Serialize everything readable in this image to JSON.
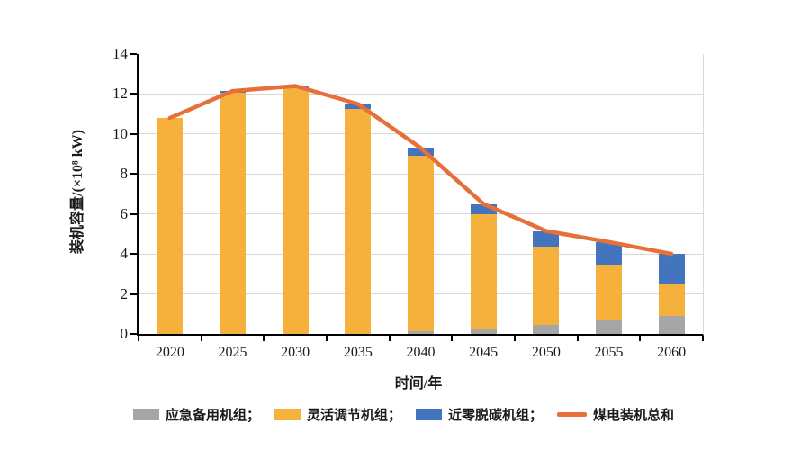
{
  "chart_data": {
    "type": "bar",
    "subtype": "stacked-columns-with-total-line",
    "categories": [
      "2020",
      "2025",
      "2030",
      "2035",
      "2040",
      "2045",
      "2050",
      "2055",
      "2060"
    ],
    "series": [
      {
        "key": "emergency-backup-units",
        "name": "应急备用机组",
        "color": "#a6a6a6",
        "values": [
          0,
          0,
          0,
          0,
          0.15,
          0.25,
          0.45,
          0.7,
          0.9
        ]
      },
      {
        "key": "flexible-regulation-units",
        "name": "灵活调节机组",
        "color": "#f6b13c",
        "values": [
          10.8,
          12.05,
          12.3,
          11.25,
          8.75,
          5.75,
          3.9,
          2.75,
          1.6
        ]
      },
      {
        "key": "near-zero-decarbonization-units",
        "name": "近零脱碳机组",
        "color": "#4374be",
        "values": [
          0,
          0.1,
          0.1,
          0.25,
          0.4,
          0.5,
          0.8,
          1.15,
          1.5
        ]
      }
    ],
    "line_series": {
      "key": "coal-power-installed-total",
      "name": "煤电装机总和",
      "color": "#e7703a",
      "values": [
        10.8,
        12.15,
        12.4,
        11.5,
        9.3,
        6.5,
        5.15,
        4.6,
        4.0
      ]
    },
    "xlabel": "时间/年",
    "ylabel": "装机容量/(×10⁸ kW)",
    "ylim": [
      0,
      14
    ],
    "ytick_step": 2,
    "yticks": [
      0,
      2,
      4,
      6,
      8,
      10,
      12,
      14
    ],
    "grid": true,
    "legend_position": "bottom"
  },
  "legend": {
    "items": [
      {
        "label": "应急备用机组；"
      },
      {
        "label": "灵活调节机组；"
      },
      {
        "label": "近零脱碳机组；"
      },
      {
        "label": "煤电装机总和"
      }
    ]
  }
}
